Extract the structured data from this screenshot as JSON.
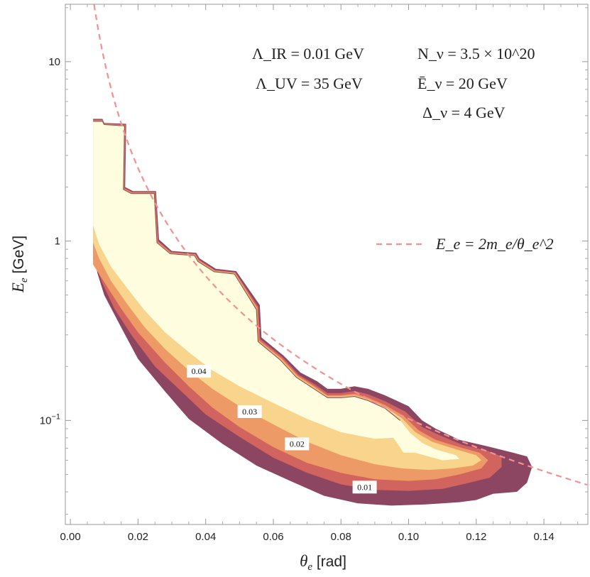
{
  "chart_data": {
    "type": "contour",
    "xlabel_sym": "θ",
    "xlabel_sub": "e",
    "xlabel_unit": " [rad]",
    "ylabel_sym": "E",
    "ylabel_sub": "e",
    "ylabel_unit": " [GeV]",
    "xlim": [
      -0.0015,
      0.153
    ],
    "ylim_log10": [
      -1.58,
      1.32
    ],
    "xticks": [
      {
        "value": 0.0,
        "label": "0.00"
      },
      {
        "value": 0.02,
        "label": "0.02"
      },
      {
        "value": 0.04,
        "label": "0.04"
      },
      {
        "value": 0.06,
        "label": "0.06"
      },
      {
        "value": 0.08,
        "label": "0.08"
      },
      {
        "value": 0.1,
        "label": "0.10"
      },
      {
        "value": 0.12,
        "label": "0.12"
      },
      {
        "value": 0.14,
        "label": "0.14"
      }
    ],
    "yticks": [
      {
        "value": 10,
        "label": "10"
      },
      {
        "value": 1,
        "label": "1"
      },
      {
        "value": 0.1,
        "label": "10",
        "sup": "−1"
      }
    ],
    "annotations": {
      "lambda_ir": "Λ_IR = 0.01 GeV",
      "lambda_uv": "Λ_UV = 35 GeV",
      "n_nu": "N_ν = 3.5 × 10^20",
      "e_nu": "Ē_ν = 20 GeV",
      "delta_nu": "Δ_ν = 4 GeV"
    },
    "legend": [
      {
        "label": "E_e = 2m_e/θ_e^2",
        "style": "dashed",
        "color": "#f29191"
      }
    ],
    "curve": {
      "name": "E_e = 2m_e/θ_e^2",
      "m_e_GeV": 0.000511
    },
    "colors": {
      "level_001": "#8c4662",
      "level_002": "#d2645f",
      "level_003": "#ee9a66",
      "level_004": "#f9d48c",
      "inner": "#fffde0",
      "curve": "#f29191",
      "frame": "#999999"
    },
    "contour_labels": [
      {
        "text": "0.04",
        "x": 0.038,
        "y": 0.188
      },
      {
        "text": "0.03",
        "x": 0.053,
        "y": 0.112
      },
      {
        "text": "0.02",
        "x": 0.067,
        "y": 0.074
      },
      {
        "text": "0.01",
        "x": 0.087,
        "y": 0.0425
      }
    ],
    "regions": [
      {
        "name": "region-level-0.01",
        "level": "0.01",
        "color_key": "level_001",
        "points": [
          [
            0.0067,
            4.8
          ],
          [
            0.0095,
            4.8
          ],
          [
            0.01,
            4.55
          ],
          [
            0.0165,
            4.5
          ],
          [
            0.0162,
            2.0
          ],
          [
            0.0185,
            1.9
          ],
          [
            0.0253,
            1.9
          ],
          [
            0.0262,
            1.02
          ],
          [
            0.03,
            0.88
          ],
          [
            0.0372,
            0.86
          ],
          [
            0.0382,
            0.8
          ],
          [
            0.043,
            0.7
          ],
          [
            0.049,
            0.68
          ],
          [
            0.056,
            0.44
          ],
          [
            0.0565,
            0.29
          ],
          [
            0.063,
            0.23
          ],
          [
            0.068,
            0.185
          ],
          [
            0.073,
            0.165
          ],
          [
            0.076,
            0.15
          ],
          [
            0.08,
            0.15
          ],
          [
            0.084,
            0.155
          ],
          [
            0.088,
            0.15
          ],
          [
            0.093,
            0.138
          ],
          [
            0.1,
            0.12
          ],
          [
            0.104,
            0.1
          ],
          [
            0.108,
            0.09
          ],
          [
            0.115,
            0.078
          ],
          [
            0.123,
            0.072
          ],
          [
            0.131,
            0.066
          ],
          [
            0.135,
            0.063
          ],
          [
            0.1365,
            0.055
          ],
          [
            0.135,
            0.045
          ],
          [
            0.132,
            0.04
          ],
          [
            0.125,
            0.039
          ],
          [
            0.12,
            0.036
          ],
          [
            0.115,
            0.035
          ],
          [
            0.105,
            0.034
          ],
          [
            0.095,
            0.0335
          ],
          [
            0.085,
            0.0345
          ],
          [
            0.075,
            0.038
          ],
          [
            0.065,
            0.046
          ],
          [
            0.055,
            0.056
          ],
          [
            0.045,
            0.074
          ],
          [
            0.035,
            0.102
          ],
          [
            0.028,
            0.145
          ],
          [
            0.02,
            0.22
          ],
          [
            0.015,
            0.33
          ],
          [
            0.01,
            0.5
          ],
          [
            0.008,
            0.66
          ],
          [
            0.0067,
            0.87
          ]
        ]
      },
      {
        "name": "region-level-0.02",
        "level": "0.02",
        "color_key": "level_002",
        "points": [
          [
            0.0067,
            4.75
          ],
          [
            0.0095,
            4.75
          ],
          [
            0.01,
            4.52
          ],
          [
            0.0163,
            4.46
          ],
          [
            0.016,
            1.98
          ],
          [
            0.0183,
            1.88
          ],
          [
            0.0251,
            1.88
          ],
          [
            0.026,
            1.0
          ],
          [
            0.0298,
            0.87
          ],
          [
            0.037,
            0.85
          ],
          [
            0.038,
            0.79
          ],
          [
            0.0428,
            0.69
          ],
          [
            0.0488,
            0.67
          ],
          [
            0.0556,
            0.43
          ],
          [
            0.0561,
            0.285
          ],
          [
            0.0628,
            0.225
          ],
          [
            0.0675,
            0.18
          ],
          [
            0.0725,
            0.158
          ],
          [
            0.076,
            0.142
          ],
          [
            0.08,
            0.142
          ],
          [
            0.084,
            0.146
          ],
          [
            0.088,
            0.14
          ],
          [
            0.093,
            0.128
          ],
          [
            0.099,
            0.112
          ],
          [
            0.104,
            0.092
          ],
          [
            0.109,
            0.083
          ],
          [
            0.116,
            0.073
          ],
          [
            0.123,
            0.068
          ],
          [
            0.1275,
            0.063
          ],
          [
            0.1275,
            0.055
          ],
          [
            0.124,
            0.048
          ],
          [
            0.118,
            0.045
          ],
          [
            0.11,
            0.0415
          ],
          [
            0.1,
            0.0405
          ],
          [
            0.09,
            0.041
          ],
          [
            0.08,
            0.044
          ],
          [
            0.07,
            0.051
          ],
          [
            0.06,
            0.062
          ],
          [
            0.05,
            0.081
          ],
          [
            0.04,
            0.108
          ],
          [
            0.032,
            0.15
          ],
          [
            0.025,
            0.2
          ],
          [
            0.018,
            0.3
          ],
          [
            0.013,
            0.42
          ],
          [
            0.0095,
            0.58
          ],
          [
            0.0067,
            0.79
          ]
        ]
      },
      {
        "name": "region-level-0.03",
        "level": "0.03",
        "color_key": "level_003",
        "points": [
          [
            0.0067,
            4.7
          ],
          [
            0.0095,
            4.7
          ],
          [
            0.01,
            4.5
          ],
          [
            0.0162,
            4.43
          ],
          [
            0.0159,
            1.96
          ],
          [
            0.0182,
            1.86
          ],
          [
            0.025,
            1.86
          ],
          [
            0.0258,
            0.99
          ],
          [
            0.0297,
            0.86
          ],
          [
            0.0369,
            0.84
          ],
          [
            0.0379,
            0.78
          ],
          [
            0.0427,
            0.685
          ],
          [
            0.0487,
            0.665
          ],
          [
            0.0553,
            0.425
          ],
          [
            0.0558,
            0.28
          ],
          [
            0.0625,
            0.222
          ],
          [
            0.0672,
            0.178
          ],
          [
            0.0722,
            0.155
          ],
          [
            0.076,
            0.138
          ],
          [
            0.08,
            0.138
          ],
          [
            0.084,
            0.141
          ],
          [
            0.088,
            0.134
          ],
          [
            0.093,
            0.122
          ],
          [
            0.0985,
            0.106
          ],
          [
            0.103,
            0.088
          ],
          [
            0.108,
            0.078
          ],
          [
            0.115,
            0.071
          ],
          [
            0.121,
            0.066
          ],
          [
            0.1235,
            0.06
          ],
          [
            0.1215,
            0.054
          ],
          [
            0.115,
            0.05
          ],
          [
            0.108,
            0.047
          ],
          [
            0.1,
            0.046
          ],
          [
            0.09,
            0.047
          ],
          [
            0.08,
            0.051
          ],
          [
            0.07,
            0.058
          ],
          [
            0.06,
            0.071
          ],
          [
            0.05,
            0.092
          ],
          [
            0.042,
            0.118
          ],
          [
            0.035,
            0.155
          ],
          [
            0.028,
            0.21
          ],
          [
            0.02,
            0.31
          ],
          [
            0.015,
            0.42
          ],
          [
            0.0105,
            0.57
          ],
          [
            0.0067,
            0.74
          ]
        ]
      },
      {
        "name": "region-level-0.04",
        "level": "0.04",
        "color_key": "level_004",
        "points": [
          [
            0.0067,
            4.68
          ],
          [
            0.0095,
            4.68
          ],
          [
            0.01,
            4.48
          ],
          [
            0.0161,
            4.41
          ],
          [
            0.0158,
            1.95
          ],
          [
            0.0181,
            1.85
          ],
          [
            0.0249,
            1.85
          ],
          [
            0.0257,
            0.985
          ],
          [
            0.0296,
            0.855
          ],
          [
            0.0368,
            0.835
          ],
          [
            0.0378,
            0.775
          ],
          [
            0.0426,
            0.68
          ],
          [
            0.0486,
            0.66
          ],
          [
            0.0551,
            0.42
          ],
          [
            0.0556,
            0.277
          ],
          [
            0.0622,
            0.22
          ],
          [
            0.067,
            0.176
          ],
          [
            0.072,
            0.153
          ],
          [
            0.076,
            0.136
          ],
          [
            0.08,
            0.136
          ],
          [
            0.084,
            0.138
          ],
          [
            0.088,
            0.131
          ],
          [
            0.093,
            0.119
          ],
          [
            0.098,
            0.103
          ],
          [
            0.102,
            0.086
          ],
          [
            0.107,
            0.076
          ],
          [
            0.114,
            0.069
          ],
          [
            0.12,
            0.064
          ],
          [
            0.1215,
            0.06
          ],
          [
            0.119,
            0.056
          ],
          [
            0.113,
            0.054
          ],
          [
            0.106,
            0.053
          ],
          [
            0.098,
            0.054
          ],
          [
            0.09,
            0.057
          ],
          [
            0.08,
            0.064
          ],
          [
            0.07,
            0.076
          ],
          [
            0.06,
            0.095
          ],
          [
            0.05,
            0.12
          ],
          [
            0.042,
            0.15
          ],
          [
            0.035,
            0.19
          ],
          [
            0.028,
            0.25
          ],
          [
            0.022,
            0.33
          ],
          [
            0.017,
            0.44
          ],
          [
            0.012,
            0.6
          ],
          [
            0.0085,
            0.8
          ],
          [
            0.0067,
            0.98
          ]
        ]
      },
      {
        "name": "region-level-inner",
        "level": "inner",
        "color_key": "inner",
        "points": [
          [
            0.0067,
            4.65
          ],
          [
            0.0095,
            4.65
          ],
          [
            0.01,
            4.46
          ],
          [
            0.016,
            4.39
          ],
          [
            0.0157,
            1.94
          ],
          [
            0.018,
            1.84
          ],
          [
            0.0248,
            1.84
          ],
          [
            0.0256,
            0.98
          ],
          [
            0.0295,
            0.85
          ],
          [
            0.0367,
            0.83
          ],
          [
            0.0377,
            0.77
          ],
          [
            0.0425,
            0.675
          ],
          [
            0.0485,
            0.655
          ],
          [
            0.055,
            0.415
          ],
          [
            0.0555,
            0.275
          ],
          [
            0.062,
            0.218
          ],
          [
            0.0668,
            0.174
          ],
          [
            0.0718,
            0.151
          ],
          [
            0.076,
            0.134
          ],
          [
            0.08,
            0.134
          ],
          [
            0.084,
            0.136
          ],
          [
            0.088,
            0.129
          ],
          [
            0.093,
            0.117
          ],
          [
            0.0975,
            0.1
          ],
          [
            0.1005,
            0.085
          ],
          [
            0.104,
            0.075
          ],
          [
            0.108,
            0.069
          ],
          [
            0.114,
            0.064
          ],
          [
            0.115,
            0.061
          ],
          [
            0.11,
            0.06
          ],
          [
            0.102,
            0.066
          ],
          [
            0.0985,
            0.066
          ],
          [
            0.097,
            0.073
          ],
          [
            0.0955,
            0.08
          ],
          [
            0.09,
            0.079
          ],
          [
            0.08,
            0.086
          ],
          [
            0.07,
            0.102
          ],
          [
            0.06,
            0.125
          ],
          [
            0.05,
            0.155
          ],
          [
            0.042,
            0.19
          ],
          [
            0.035,
            0.24
          ],
          [
            0.028,
            0.31
          ],
          [
            0.022,
            0.41
          ],
          [
            0.017,
            0.54
          ],
          [
            0.012,
            0.72
          ],
          [
            0.0085,
            0.96
          ],
          [
            0.0067,
            1.22
          ]
        ]
      }
    ]
  }
}
